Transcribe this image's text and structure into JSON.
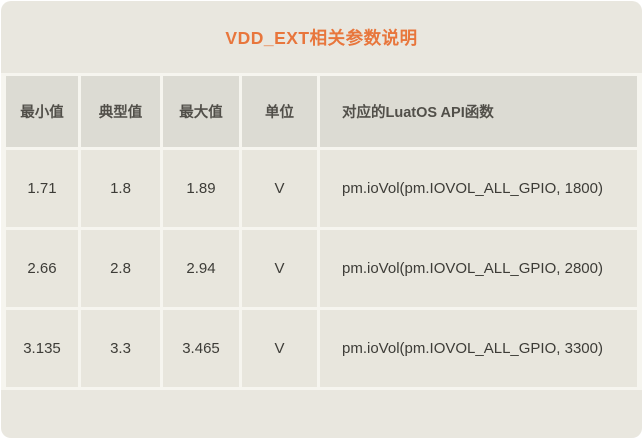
{
  "title": "VDD_EXT相关参数说明",
  "colors": {
    "page_background": "#ffffff",
    "card_background": "#e9e7df",
    "header_cell_background": "#dcdbd3",
    "data_cell_background": "#e8e6dd",
    "separator": "#f6f5ef",
    "title_text": "#e8763c",
    "header_text": "#514f49",
    "body_text": "#3d3c37"
  },
  "table": {
    "headers": [
      "最小值",
      "典型值",
      "最大值",
      "单位",
      "对应的LuatOS API函数"
    ],
    "rows": [
      [
        "1.71",
        "1.8",
        "1.89",
        "V",
        "pm.ioVol(pm.IOVOL_ALL_GPIO, 1800)"
      ],
      [
        "2.66",
        "2.8",
        "2.94",
        "V",
        "pm.ioVol(pm.IOVOL_ALL_GPIO, 2800)"
      ],
      [
        "3.135",
        "3.3",
        "3.465",
        "V",
        "pm.ioVol(pm.IOVOL_ALL_GPIO, 3300)"
      ]
    ]
  }
}
